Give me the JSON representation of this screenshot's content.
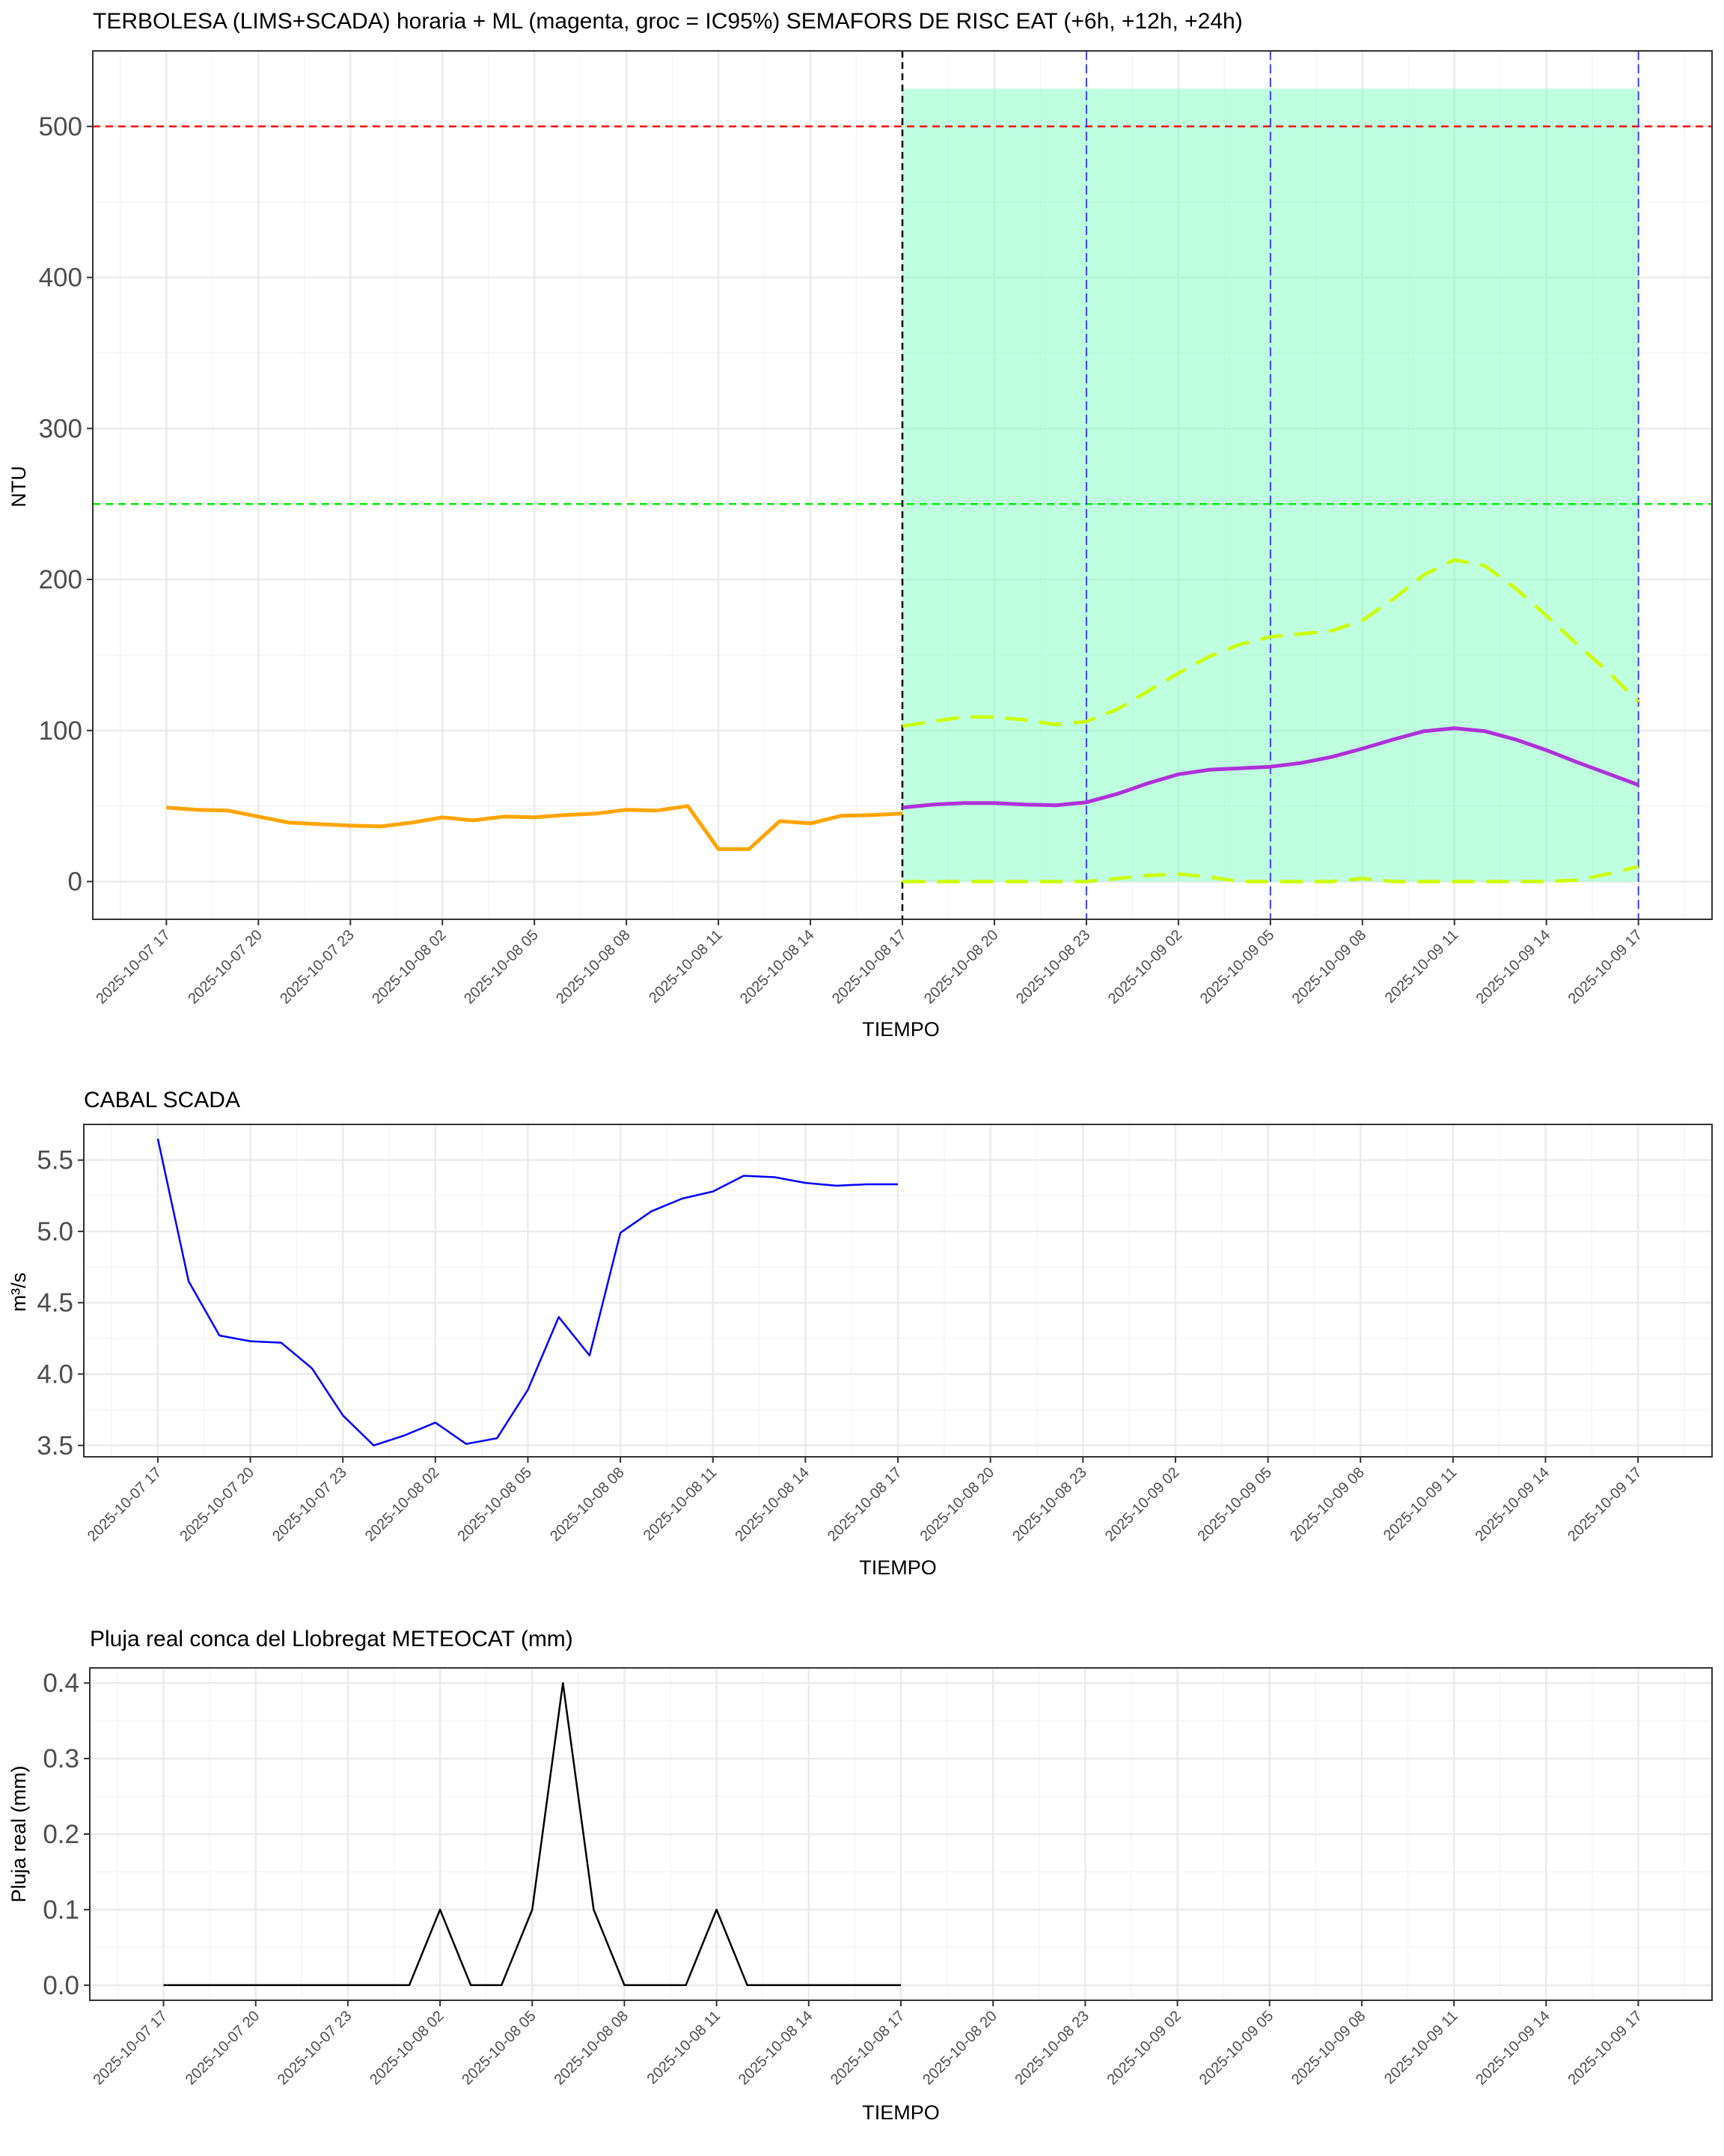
{
  "colors": {
    "ntu_observed": "#FFA500",
    "ml_prediction": "#B030D8",
    "ci95": "#CCFF00",
    "risk_zone_fill": "#7FFFBF",
    "limit_500": "#FF0000",
    "limit_250": "#00EE00",
    "now_line": "#000000",
    "horizon_lines": "#3333FF",
    "flow": "#0000FF",
    "rain": "#000000",
    "grid_major": "#EBEBEB",
    "grid_minor": "#F5F5F5",
    "panel_border": "#333333"
  },
  "chart_data": [
    {
      "type": "line",
      "title": "TERBOLESA (LIMS+SCADA) horaria + ML (magenta, groc = IC95%) SEMAFORS DE RISC EAT (+6h, +12h, +24h)",
      "xlabel": "TIEMPO",
      "ylabel": "NTU",
      "x_ticks": [
        "2025-10-07 17",
        "2025-10-07 20",
        "2025-10-07 23",
        "2025-10-08 02",
        "2025-10-08 05",
        "2025-10-08 08",
        "2025-10-08 11",
        "2025-10-08 14",
        "2025-10-08 17",
        "2025-10-08 20",
        "2025-10-08 23",
        "2025-10-09 02",
        "2025-10-09 05",
        "2025-10-09 08",
        "2025-10-09 11",
        "2025-10-09 14",
        "2025-10-09 17"
      ],
      "xlim_hours_from_first_tick": [
        -2.4,
        50.4
      ],
      "ylim": [
        -25,
        550
      ],
      "y_ticks": [
        0,
        100,
        200,
        300,
        400,
        500
      ],
      "grid": true,
      "series": [
        {
          "x": [
            "2025-10-07 17",
            "2025-10-07 18",
            "2025-10-07 19",
            "2025-10-07 20",
            "2025-10-07 21",
            "2025-10-07 22",
            "2025-10-07 23",
            "2025-10-08 00",
            "2025-10-08 01",
            "2025-10-08 02",
            "2025-10-08 03",
            "2025-10-08 04",
            "2025-10-08 05",
            "2025-10-08 06",
            "2025-10-08 07",
            "2025-10-08 08",
            "2025-10-08 09",
            "2025-10-08 10",
            "2025-10-08 11",
            "2025-10-08 12",
            "2025-10-08 13",
            "2025-10-08 14",
            "2025-10-08 15",
            "2025-10-08 16",
            "2025-10-08 17"
          ],
          "values": [
            49,
            47.5,
            47,
            43,
            39,
            38,
            37,
            36.5,
            39,
            42.5,
            40.5,
            43,
            42.5,
            44,
            45,
            47.5,
            47,
            50,
            21.5,
            21.5,
            40,
            38.5,
            43.5,
            44,
            45
          ]
        },
        {
          "x": [
            "2025-10-08 17",
            "2025-10-08 18",
            "2025-10-08 19",
            "2025-10-08 20",
            "2025-10-08 21",
            "2025-10-08 22",
            "2025-10-08 23",
            "2025-10-09 00",
            "2025-10-09 01",
            "2025-10-09 02",
            "2025-10-09 03",
            "2025-10-09 04",
            "2025-10-09 05",
            "2025-10-09 06",
            "2025-10-09 07",
            "2025-10-09 08",
            "2025-10-09 09",
            "2025-10-09 10",
            "2025-10-09 11",
            "2025-10-09 12",
            "2025-10-09 13",
            "2025-10-09 14",
            "2025-10-09 15",
            "2025-10-09 16",
            "2025-10-09 17"
          ],
          "values": [
            49,
            51,
            52,
            52,
            51,
            50.5,
            52.5,
            58,
            65,
            71,
            74,
            75,
            76,
            78.5,
            82.5,
            88,
            94,
            99.5,
            101.5,
            99.5,
            94,
            87,
            79,
            71.5,
            64
          ]
        },
        {
          "x": [
            "2025-10-08 17",
            "2025-10-08 18",
            "2025-10-08 19",
            "2025-10-08 20",
            "2025-10-08 21",
            "2025-10-08 22",
            "2025-10-08 23",
            "2025-10-09 00",
            "2025-10-09 01",
            "2025-10-09 02",
            "2025-10-09 03",
            "2025-10-09 04",
            "2025-10-09 05",
            "2025-10-09 06",
            "2025-10-09 07",
            "2025-10-09 08",
            "2025-10-09 09",
            "2025-10-09 10",
            "2025-10-09 11",
            "2025-10-09 12",
            "2025-10-09 13",
            "2025-10-09 14",
            "2025-10-09 15",
            "2025-10-09 16",
            "2025-10-09 17"
          ],
          "values": [
            103,
            106,
            109,
            109,
            107,
            104,
            106,
            114,
            126,
            138,
            149,
            157,
            162,
            164,
            166,
            173,
            187,
            203,
            213,
            209,
            194,
            176,
            157,
            139,
            119
          ]
        },
        {
          "x": [
            "2025-10-08 17",
            "2025-10-08 18",
            "2025-10-08 19",
            "2025-10-08 20",
            "2025-10-08 21",
            "2025-10-08 22",
            "2025-10-08 23",
            "2025-10-09 00",
            "2025-10-09 01",
            "2025-10-09 02",
            "2025-10-09 03",
            "2025-10-09 04",
            "2025-10-09 05",
            "2025-10-09 06",
            "2025-10-09 07",
            "2025-10-09 08",
            "2025-10-09 09",
            "2025-10-09 10",
            "2025-10-09 11",
            "2025-10-09 12",
            "2025-10-09 13",
            "2025-10-09 14",
            "2025-10-09 15",
            "2025-10-09 16",
            "2025-10-09 17"
          ],
          "values": [
            0,
            0,
            0,
            0,
            0,
            0,
            0,
            2,
            4,
            5,
            3,
            0,
            0,
            0,
            0,
            2,
            0,
            0,
            0,
            0,
            0,
            0,
            1,
            5,
            10
          ]
        }
      ],
      "risk_zone": {
        "x": [
          "2025-10-08 17",
          "2025-10-09 17"
        ],
        "y": [
          0,
          525
        ]
      },
      "hlines": [
        500,
        250
      ],
      "vlines": [
        "2025-10-08 17",
        "2025-10-08 23",
        "2025-10-09 05",
        "2025-10-09 17"
      ]
    },
    {
      "type": "line",
      "title": "CABAL SCADA",
      "xlabel": "TIEMPO",
      "ylabel": "m³/s",
      "x_ticks": [
        "2025-10-07 17",
        "2025-10-07 20",
        "2025-10-07 23",
        "2025-10-08 02",
        "2025-10-08 05",
        "2025-10-08 08",
        "2025-10-08 11",
        "2025-10-08 14",
        "2025-10-08 17",
        "2025-10-08 20",
        "2025-10-08 23",
        "2025-10-09 02",
        "2025-10-09 05",
        "2025-10-09 08",
        "2025-10-09 11",
        "2025-10-09 14",
        "2025-10-09 17"
      ],
      "xlim_hours_from_first_tick": [
        -2.4,
        50.4
      ],
      "ylim": [
        3.42,
        5.75
      ],
      "y_ticks": [
        3.5,
        4.0,
        4.5,
        5.0,
        5.5
      ],
      "grid": true,
      "series": [
        {
          "x": [
            "2025-10-07 17",
            "2025-10-07 18",
            "2025-10-07 19",
            "2025-10-07 20",
            "2025-10-07 21",
            "2025-10-07 22",
            "2025-10-07 23",
            "2025-10-08 00",
            "2025-10-08 01",
            "2025-10-08 02",
            "2025-10-08 03",
            "2025-10-08 04",
            "2025-10-08 05",
            "2025-10-08 06",
            "2025-10-08 07",
            "2025-10-08 08",
            "2025-10-08 09",
            "2025-10-08 10",
            "2025-10-08 11",
            "2025-10-08 12",
            "2025-10-08 13",
            "2025-10-08 14",
            "2025-10-08 15",
            "2025-10-08 16",
            "2025-10-08 17"
          ],
          "values": [
            5.65,
            4.65,
            4.27,
            4.23,
            4.22,
            4.04,
            3.71,
            3.5,
            3.57,
            3.66,
            3.51,
            3.55,
            3.89,
            4.4,
            4.13,
            4.99,
            5.14,
            5.23,
            5.28,
            5.39,
            5.38,
            5.34,
            5.32,
            5.33,
            5.33
          ]
        }
      ]
    },
    {
      "type": "line",
      "title": "Pluja real conca del Llobregat METEOCAT (mm)",
      "xlabel": "TIEMPO",
      "ylabel": "Pluja real (mm)",
      "x_ticks": [
        "2025-10-07 17",
        "2025-10-07 20",
        "2025-10-07 23",
        "2025-10-08 02",
        "2025-10-08 05",
        "2025-10-08 08",
        "2025-10-08 11",
        "2025-10-08 14",
        "2025-10-08 17",
        "2025-10-08 20",
        "2025-10-08 23",
        "2025-10-09 02",
        "2025-10-09 05",
        "2025-10-09 08",
        "2025-10-09 11",
        "2025-10-09 14",
        "2025-10-09 17"
      ],
      "xlim_hours_from_first_tick": [
        -2.4,
        50.4
      ],
      "ylim": [
        -0.02,
        0.42
      ],
      "y_ticks": [
        0.0,
        0.1,
        0.2,
        0.3,
        0.4
      ],
      "grid": true,
      "series": [
        {
          "x": [
            "2025-10-07 17",
            "2025-10-07 18",
            "2025-10-07 19",
            "2025-10-07 20",
            "2025-10-07 21",
            "2025-10-07 22",
            "2025-10-07 23",
            "2025-10-08 00",
            "2025-10-08 01",
            "2025-10-08 02",
            "2025-10-08 03",
            "2025-10-08 04",
            "2025-10-08 05",
            "2025-10-08 06",
            "2025-10-08 07",
            "2025-10-08 08",
            "2025-10-08 09",
            "2025-10-08 10",
            "2025-10-08 11",
            "2025-10-08 12",
            "2025-10-08 13",
            "2025-10-08 14",
            "2025-10-08 15",
            "2025-10-08 16",
            "2025-10-08 17"
          ],
          "values": [
            0,
            0,
            0,
            0,
            0,
            0,
            0,
            0,
            0,
            0.1,
            0,
            0,
            0.1,
            0.4,
            0.1,
            0,
            0,
            0,
            0.1,
            0,
            0,
            0,
            0,
            0,
            0
          ]
        }
      ]
    }
  ]
}
